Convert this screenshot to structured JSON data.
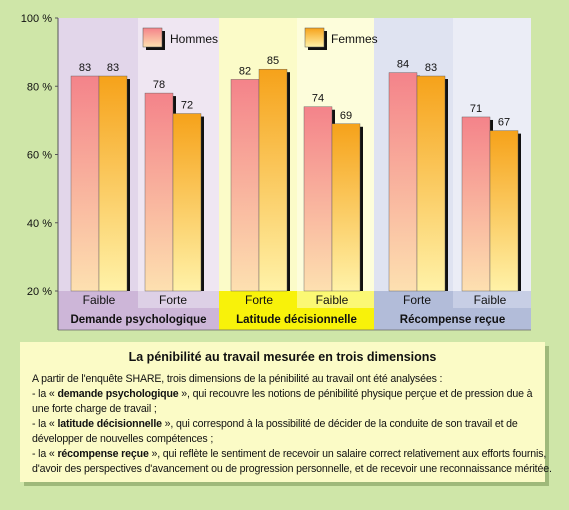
{
  "chart_data": {
    "type": "bar",
    "groups": [
      {
        "label": "Demande psychologique",
        "categories": [
          "Faible",
          "Forte"
        ]
      },
      {
        "label": "Latitude décisionnelle",
        "categories": [
          "Forte",
          "Faible"
        ]
      },
      {
        "label": "Récompense reçue",
        "categories": [
          "Forte",
          "Faible"
        ]
      }
    ],
    "series": [
      {
        "name": "Hommes",
        "values": [
          83,
          78,
          82,
          74,
          84,
          71
        ]
      },
      {
        "name": "Femmes",
        "values": [
          83,
          72,
          85,
          69,
          83,
          67
        ]
      }
    ],
    "ylim": [
      20,
      100
    ],
    "yticks": [
      "20 %",
      "40 %",
      "60 %",
      "80 %",
      "100 %"
    ],
    "colors": {
      "hommes_top": "#f4838a",
      "hommes_bottom": "#fde0b0",
      "femmes_top": "#f6a21a",
      "femmes_bottom": "#fff2a8",
      "panel_demande": "#e2d6ea",
      "panel_latitude": "#fbfbc8",
      "panel_recompense": "#dfe3f1",
      "label_demande": "#cdb6d8",
      "label_latitude": "#f8f20a",
      "label_recompense": "#b2bcd9"
    }
  },
  "info": {
    "title": "La pénibilité au travail mesurée en trois dimensions",
    "intro": "A partir de l'enquête SHARE, trois dimensions de la pénibilité au travail ont été analysées :",
    "d1_pre": "- la « ",
    "d1_term": "demande psychologique",
    "d1_post": " », qui recouvre les notions de pénibilité physique perçue et de pression due à",
    "d1_cont": "une forte charge de travail ;",
    "d2_pre": "- la « ",
    "d2_term": "latitude décisionnelle",
    "d2_post": " », qui correspond à la possibilité de décider de la conduite de son travail et de",
    "d2_cont": "développer de nouvelles compétences ;",
    "d3_pre": "- la « ",
    "d3_term": "récompense reçue",
    "d3_post": " », qui reflète le sentiment de recevoir un salaire correct relativement aux efforts fournis,",
    "d3_cont": "d'avoir des perspectives d'avancement ou de progression personnelle, et de recevoir une reconnaissance méritée."
  }
}
